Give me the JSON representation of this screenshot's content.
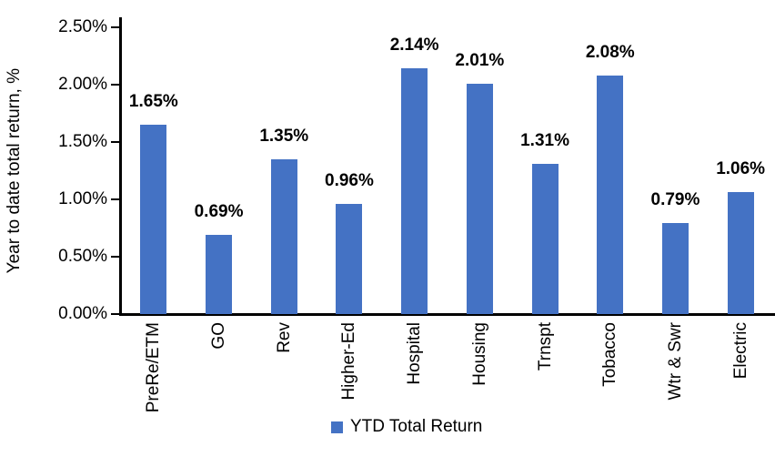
{
  "chart_data": {
    "type": "bar",
    "title": "",
    "xlabel": "",
    "ylabel": "Year to date total return, %",
    "categories": [
      "PreRe/ETM",
      "GO",
      "Rev",
      "Higher-Ed",
      "Hospital",
      "Housing",
      "Trnspt",
      "Tobacco",
      "Wtr & Swr",
      "Electric"
    ],
    "values": [
      1.65,
      0.69,
      1.35,
      0.96,
      2.14,
      2.01,
      1.31,
      2.08,
      0.79,
      1.06
    ],
    "value_labels": [
      "1.65%",
      "0.69%",
      "1.35%",
      "0.96%",
      "2.14%",
      "2.01%",
      "1.31%",
      "2.08%",
      "0.79%",
      "1.06%"
    ],
    "yticks": [
      "2.50%",
      "2.00%",
      "1.50%",
      "1.00%",
      "0.50%",
      "0.00%"
    ],
    "ylim": [
      0,
      2.5
    ],
    "grid": false,
    "legend_position": "bottom",
    "legend_label": "YTD Total Return",
    "series": [
      {
        "name": "YTD Total Return",
        "values": [
          1.65,
          0.69,
          1.35,
          0.96,
          2.14,
          2.01,
          1.31,
          2.08,
          0.79,
          1.06
        ],
        "color": "#4472C4"
      }
    ],
    "colors": {
      "bar": "#4472C4",
      "axis": "#000000",
      "text": "#000000"
    }
  }
}
